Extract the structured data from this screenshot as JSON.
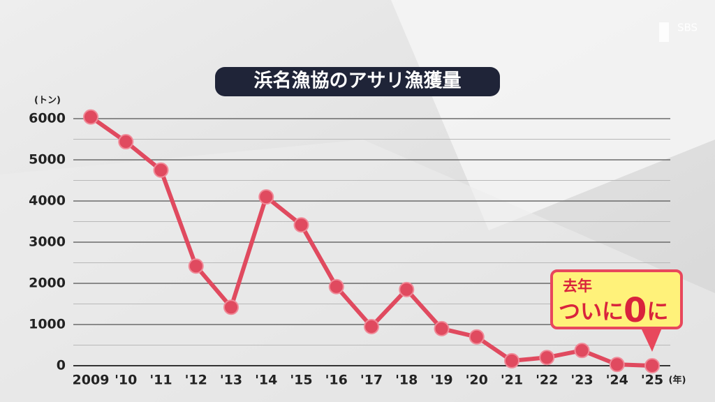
{
  "chart_data": {
    "type": "line",
    "title": "浜名漁協のアサリ漁獲量",
    "y_unit": "(トン)",
    "x_unit": "(年)",
    "logo": "SBS",
    "categories": [
      "2009",
      "'10",
      "'11",
      "'12",
      "'13",
      "'14",
      "'15",
      "'16",
      "'17",
      "'18",
      "'19",
      "'20",
      "'21",
      "'22",
      "'23",
      "'24",
      "'25"
    ],
    "values": [
      6040,
      5440,
      4750,
      2420,
      1420,
      4100,
      3420,
      1920,
      950,
      1850,
      900,
      700,
      120,
      200,
      370,
      30,
      0
    ],
    "color": "#e04a5f",
    "ylim": [
      0,
      6000
    ],
    "yticks": [
      0,
      1000,
      2000,
      3000,
      4000,
      5000,
      6000
    ],
    "minor_yticks": [
      500,
      1500,
      2500,
      3500,
      4500,
      5500
    ],
    "grid": true,
    "annotation": {
      "line1": "去年",
      "line2": [
        "ついに",
        "0",
        "に"
      ]
    }
  }
}
